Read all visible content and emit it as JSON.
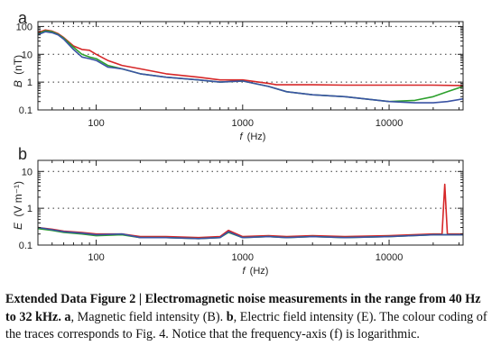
{
  "chart_data": [
    {
      "type": "line",
      "panel_label": "a",
      "ylabel_main": "B",
      "ylabel_unit": "(nT)",
      "xlabel_main": "f",
      "xlabel_unit": "(Hz)",
      "x_scale": "log",
      "y_scale": "log",
      "xlim": [
        40,
        32000
      ],
      "ylim": [
        0.1,
        150
      ],
      "x_ticks": [
        100,
        1000,
        10000
      ],
      "x_tick_labels": [
        "100",
        "1000",
        "10000"
      ],
      "y_ticks": [
        0.1,
        1,
        10,
        100
      ],
      "y_tick_labels": [
        "0.1",
        "1",
        "10",
        "100"
      ],
      "grid": "dotted horizontal at 1, 10, 100",
      "series": [
        {
          "color": "#d62728",
          "x": [
            40,
            45,
            50,
            55,
            60,
            70,
            80,
            90,
            100,
            120,
            150,
            200,
            300,
            500,
            700,
            1000,
            1500,
            1700,
            2000,
            3000,
            5000,
            10000,
            20000,
            32000
          ],
          "y": [
            60,
            75,
            68,
            55,
            40,
            20,
            15,
            14,
            10,
            6,
            4,
            3,
            2,
            1.5,
            1.2,
            1.2,
            0.9,
            0.8,
            0.8,
            0.8,
            0.78,
            0.78,
            0.78,
            0.75
          ]
        },
        {
          "color": "#2ca02c",
          "x": [
            40,
            45,
            50,
            55,
            60,
            70,
            80,
            90,
            100,
            120,
            150,
            200,
            300,
            500,
            700,
            1000,
            1500,
            2000,
            3000,
            5000,
            10000,
            15000,
            20000,
            25000,
            32000
          ],
          "y": [
            55,
            70,
            65,
            52,
            38,
            18,
            10,
            8,
            7,
            4,
            3,
            2,
            1.5,
            1.2,
            1.0,
            1.1,
            0.7,
            0.45,
            0.35,
            0.3,
            0.2,
            0.22,
            0.3,
            0.45,
            0.7
          ]
        },
        {
          "color": "#3a53a4",
          "x": [
            40,
            45,
            50,
            55,
            60,
            70,
            80,
            90,
            100,
            120,
            150,
            200,
            300,
            500,
            700,
            1000,
            1500,
            2000,
            3000,
            5000,
            10000,
            15000,
            20000,
            25000,
            32000
          ],
          "y": [
            50,
            65,
            60,
            50,
            35,
            15,
            8,
            7,
            6,
            3.5,
            3,
            2,
            1.5,
            1.2,
            1.0,
            1.1,
            0.7,
            0.45,
            0.35,
            0.3,
            0.2,
            0.18,
            0.18,
            0.2,
            0.25
          ]
        }
      ]
    },
    {
      "type": "line",
      "panel_label": "b",
      "ylabel_main": "E",
      "ylabel_unit": "(V m⁻¹)",
      "xlabel_main": "f",
      "xlabel_unit": "(Hz)",
      "x_scale": "log",
      "y_scale": "log",
      "xlim": [
        40,
        32000
      ],
      "ylim": [
        0.1,
        20
      ],
      "x_ticks": [
        100,
        1000,
        10000
      ],
      "x_tick_labels": [
        "100",
        "1000",
        "10000"
      ],
      "y_ticks": [
        0.1,
        1,
        10
      ],
      "y_tick_labels": [
        "0.1",
        "1",
        "10"
      ],
      "grid": "dotted horizontal at 1, 10",
      "series": [
        {
          "color": "#d62728",
          "x": [
            40,
            50,
            60,
            80,
            100,
            150,
            200,
            300,
            500,
            700,
            800,
            1000,
            1500,
            2000,
            3000,
            5000,
            10000,
            20000,
            23000,
            24000,
            25000,
            32000
          ],
          "y": [
            0.3,
            0.27,
            0.24,
            0.22,
            0.2,
            0.2,
            0.17,
            0.17,
            0.16,
            0.17,
            0.25,
            0.17,
            0.18,
            0.17,
            0.18,
            0.17,
            0.18,
            0.2,
            0.2,
            4.5,
            0.2,
            0.2
          ]
        },
        {
          "color": "#2ca02c",
          "x": [
            40,
            50,
            60,
            80,
            100,
            150,
            200,
            300,
            500,
            700,
            800,
            1000,
            1500,
            2000,
            3000,
            5000,
            10000,
            20000,
            32000
          ],
          "y": [
            0.28,
            0.25,
            0.22,
            0.2,
            0.18,
            0.19,
            0.16,
            0.16,
            0.15,
            0.16,
            0.22,
            0.16,
            0.17,
            0.16,
            0.17,
            0.16,
            0.17,
            0.19,
            0.19
          ]
        },
        {
          "color": "#3a53a4",
          "x": [
            40,
            50,
            60,
            80,
            100,
            150,
            200,
            300,
            500,
            700,
            800,
            1000,
            1500,
            2000,
            3000,
            5000,
            10000,
            20000,
            32000
          ],
          "y": [
            0.3,
            0.26,
            0.23,
            0.21,
            0.19,
            0.2,
            0.16,
            0.16,
            0.15,
            0.16,
            0.23,
            0.16,
            0.17,
            0.16,
            0.17,
            0.16,
            0.17,
            0.19,
            0.19
          ]
        }
      ]
    }
  ],
  "caption": {
    "head": "Extended Data Figure 2 | Electromagnetic noise measurements in the range from 40 Hz to 32 kHz.",
    "a_label": "a",
    "a_text": ", Magnetic field intensity (B). ",
    "b_label": "b",
    "b_text": ", Electric field intensity (E). The colour coding of the traces corresponds to Fig. 4. Notice that the frequency-axis (f) is logarithmic."
  }
}
